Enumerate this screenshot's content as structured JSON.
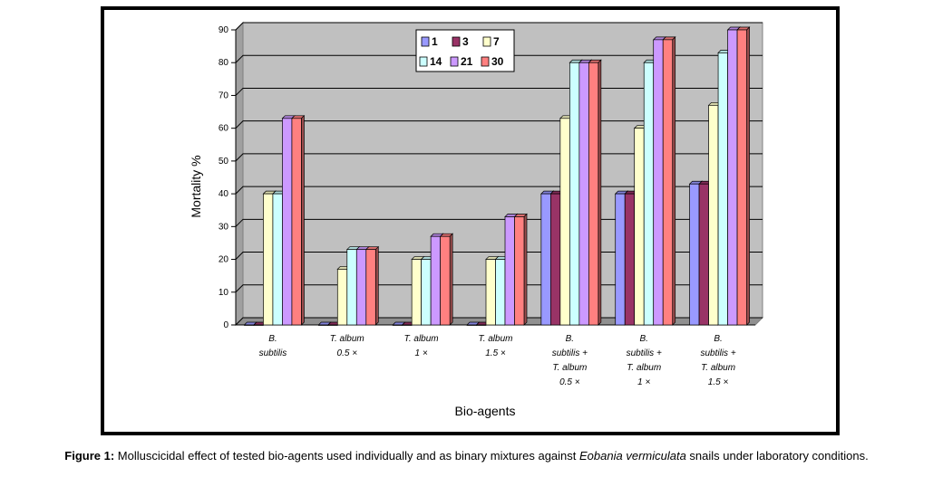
{
  "chart_data": {
    "type": "bar",
    "title": "",
    "xlabel": "Bio-agents",
    "ylabel": "Mortality %",
    "ylim": [
      0,
      90
    ],
    "yticks": [
      0,
      10,
      20,
      30,
      40,
      50,
      60,
      70,
      80,
      90
    ],
    "grid": true,
    "legend_position": "top-center",
    "categories": [
      [
        "B.",
        "subtilis"
      ],
      [
        "T. album",
        "0.5 ×"
      ],
      [
        "T. album",
        "1 ×"
      ],
      [
        "T. album",
        "1.5 ×"
      ],
      [
        "B.",
        "subtilis +",
        "T. album",
        "0.5 ×"
      ],
      [
        "B.",
        "subtilis +",
        "T. album",
        "1 ×"
      ],
      [
        "B.",
        "subtilis +",
        "T. album",
        "1.5 ×"
      ]
    ],
    "series": [
      {
        "name": "1",
        "color": "#9999ff",
        "values": [
          0,
          0,
          0,
          0,
          40,
          40,
          43
        ]
      },
      {
        "name": "3",
        "color": "#993366",
        "values": [
          0,
          0,
          0,
          0,
          40,
          40,
          43
        ]
      },
      {
        "name": "7",
        "color": "#ffffcc",
        "values": [
          40,
          17,
          20,
          20,
          63,
          60,
          67
        ]
      },
      {
        "name": "14",
        "color": "#ccffff",
        "values": [
          40,
          23,
          20,
          20,
          80,
          80,
          83
        ]
      },
      {
        "name": "21",
        "color": "#cc99ff",
        "values": [
          63,
          23,
          27,
          33,
          80,
          87,
          90
        ]
      },
      {
        "name": "30",
        "color": "#ff8080",
        "values": [
          63,
          23,
          27,
          33,
          80,
          87,
          90
        ]
      }
    ]
  },
  "caption": {
    "label": "Figure 1:",
    "text_before": " Molluscicidal effect of tested bio-agents used individually and as binary mixtures against ",
    "species": "Eobania vermiculata",
    "text_after": " snails under laboratory conditions."
  }
}
